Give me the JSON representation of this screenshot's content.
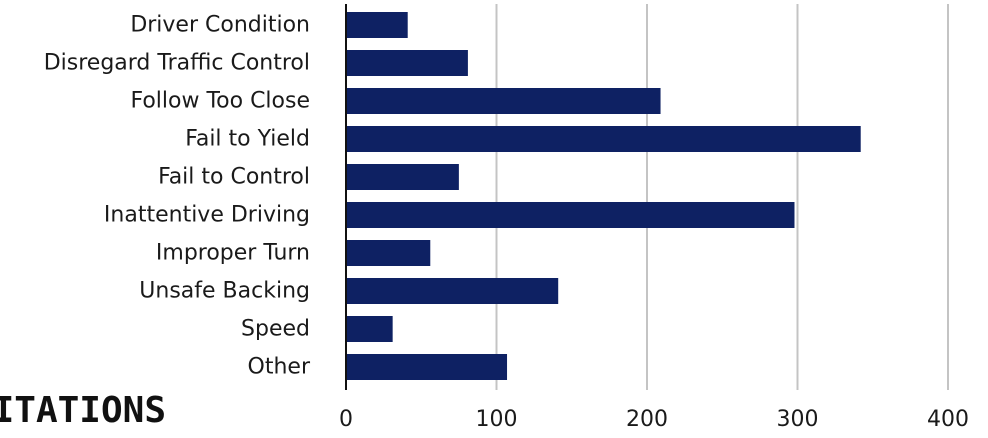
{
  "section_title": "CITATIONS",
  "colors": {
    "bar": "#0e2163",
    "grid": "#c4c4c4",
    "axis": "#111111",
    "text": "#1a1a1a"
  },
  "chart_data": {
    "type": "bar",
    "orientation": "horizontal",
    "categories": [
      "Driver Condition",
      "Disregard Traffic Control",
      "Follow Too Close",
      "Fail to Yield",
      "Fail to Control",
      "Inattentive Driving",
      "Improper Turn",
      "Unsafe Backing",
      "Speed",
      "Other"
    ],
    "values": [
      41,
      81,
      209,
      342,
      75,
      298,
      56,
      141,
      31,
      107
    ],
    "xlim": [
      0,
      400
    ],
    "xticks": [
      "0",
      "100",
      "200",
      "300",
      "400"
    ],
    "grid": true,
    "legend": "none",
    "title": "",
    "xlabel": "",
    "ylabel": ""
  }
}
